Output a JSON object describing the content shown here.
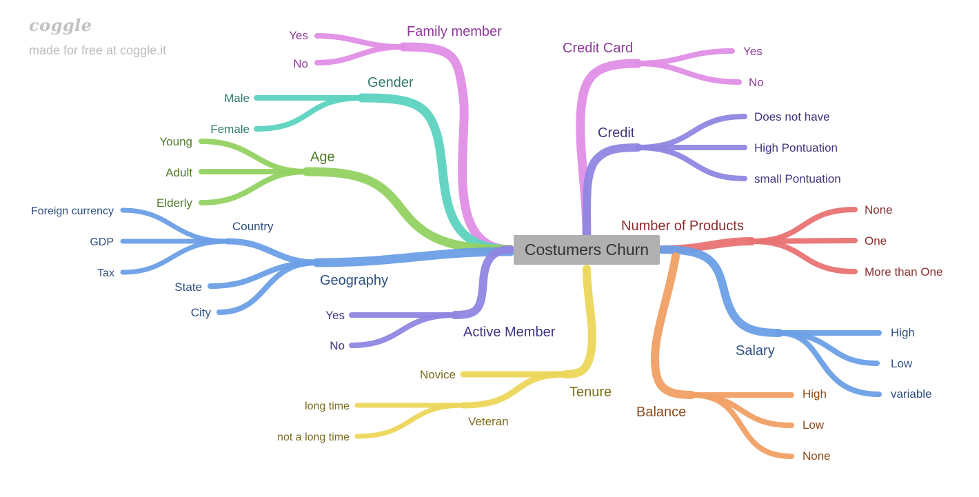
{
  "watermark": {
    "brand": "coggle",
    "credit": "made for free at coggle.it"
  },
  "center": {
    "label": "Costumers Churn"
  },
  "colors": {
    "family": "#e08fe6",
    "gender": "#5dd3c0",
    "age": "#93d262",
    "geography": "#6b9fe6",
    "active": "#8f86e2",
    "tenure": "#ecd65a",
    "credit_card": "#e08fe6",
    "credit": "#8f86e2",
    "products": "#e97272",
    "salary": "#6b9fe6",
    "balance": "#f0a064"
  },
  "branches": {
    "family_member": {
      "label": "Family member",
      "children": [
        "Yes",
        "No"
      ]
    },
    "gender": {
      "label": "Gender",
      "children": [
        "Male",
        "Female"
      ]
    },
    "age": {
      "label": "Age",
      "children": [
        "Young",
        "Adult",
        "Elderly"
      ]
    },
    "geography": {
      "label": "Geography",
      "country": {
        "label": "Country",
        "children": [
          "Foreign currency",
          "GDP",
          "Tax"
        ]
      },
      "children": [
        "State",
        "City"
      ]
    },
    "active_member": {
      "label": "Active Member",
      "children": [
        "Yes",
        "No"
      ]
    },
    "tenure": {
      "label": "Tenure",
      "novice": "Novice",
      "veteran": {
        "label": "Veteran",
        "children": [
          "long time",
          "not a long time"
        ]
      }
    },
    "credit_card": {
      "label": "Credit Card",
      "children": [
        "Yes",
        "No"
      ]
    },
    "credit": {
      "label": "Credit",
      "children": [
        "Does not have",
        "High Pontuation",
        "small Pontuation"
      ]
    },
    "number_of_products": {
      "label": "Number of Products",
      "children": [
        "None",
        "One",
        "More than One"
      ]
    },
    "salary": {
      "label": "Salary",
      "children": [
        "High",
        "Low",
        "variable"
      ]
    },
    "balance": {
      "label": "Balance",
      "children": [
        "High",
        "Low",
        "None"
      ]
    }
  }
}
